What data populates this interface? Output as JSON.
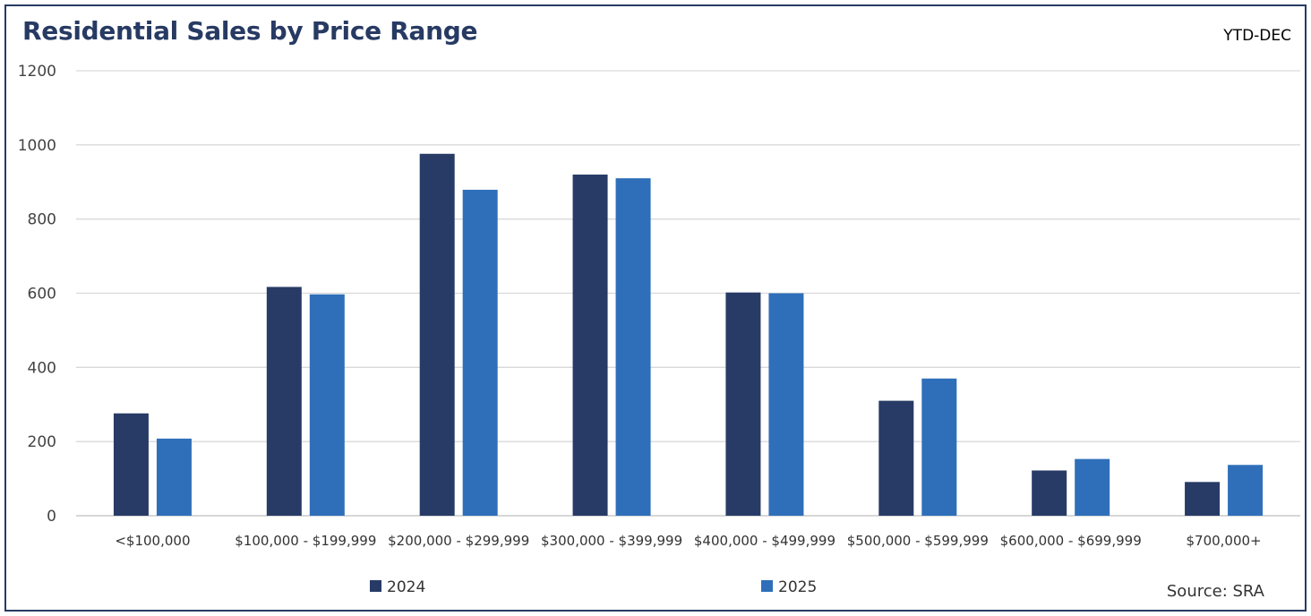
{
  "title": "Residential Sales by Price Range",
  "period_label": "YTD-DEC",
  "source_label": "Source: SRA",
  "colors": {
    "2024": "#283b66",
    "2025": "#2f6fba",
    "grid": "#d9d9d9",
    "frame": "#273a63"
  },
  "chart_data": {
    "type": "bar",
    "title": "Residential Sales by Price Range",
    "xlabel": "",
    "ylabel": "",
    "ylim": [
      0,
      1200
    ],
    "yticks": [
      0,
      200,
      400,
      600,
      800,
      1000,
      1200
    ],
    "grid": true,
    "legend_position": "bottom",
    "categories": [
      "<$100,000",
      "$100,000 - $199,999",
      "$200,000 - $299,999",
      "$300,000 - $399,999",
      "$400,000 - $499,999",
      "$500,000 - $599,999",
      "$600,000 - $699,999",
      "$700,000+"
    ],
    "series": [
      {
        "name": "2024",
        "values": [
          276,
          617,
          976,
          920,
          602,
          310,
          122,
          91
        ]
      },
      {
        "name": "2025",
        "values": [
          208,
          597,
          879,
          910,
          600,
          370,
          153,
          137
        ]
      }
    ]
  }
}
